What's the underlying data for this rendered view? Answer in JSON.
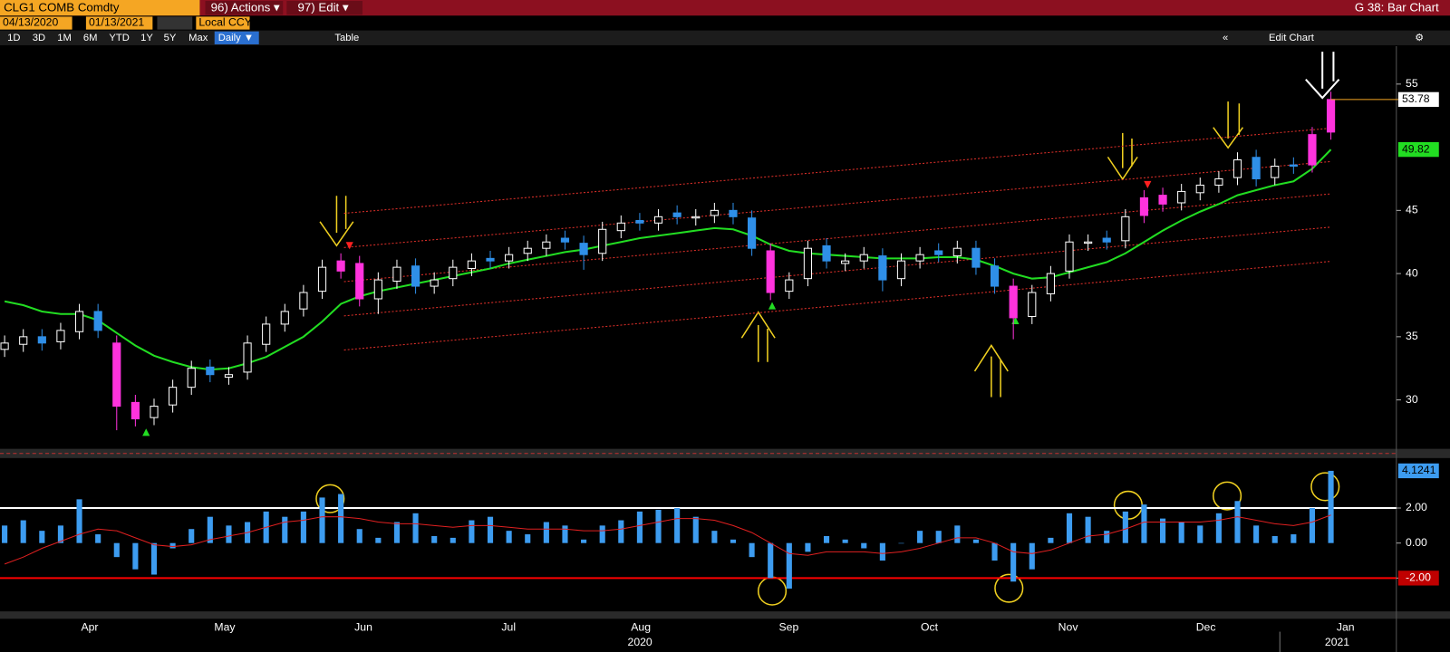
{
  "ui": {
    "security": "CLG1 COMB Comdty",
    "actions": "96) Actions ▾",
    "edit": "97) Edit ▾",
    "function": "G 38: Bar Chart",
    "start_date": "04/13/2020",
    "end_date": "01/13/2021",
    "currency": "Local CCY",
    "periods": [
      "1D",
      "3D",
      "1M",
      "6M",
      "YTD",
      "1Y",
      "5Y",
      "Max"
    ],
    "frequency": "Daily ▼",
    "table": "Table",
    "edit_chart": "Edit Chart"
  },
  "chart_data": [
    {
      "type": "candlestick",
      "open": [
        34.0,
        34.4,
        35.0,
        34.6,
        35.4,
        37.0,
        34.5,
        29.8,
        28.6,
        29.6,
        31.0,
        32.6,
        31.8,
        32.2,
        34.4,
        36.0,
        37.2,
        38.6,
        40.2,
        40.8,
        38.0,
        39.4,
        40.6,
        39.0,
        39.6,
        40.4,
        41.2,
        41.0,
        41.6,
        42.0,
        42.8,
        42.4,
        41.6,
        43.4,
        44.2,
        44.0,
        44.8,
        44.4,
        44.6,
        45.0,
        44.4,
        41.8,
        38.6,
        39.6,
        42.2,
        40.8,
        41.0,
        41.4,
        39.6,
        41.0,
        41.8,
        41.4,
        42.0,
        40.6,
        39.0,
        36.6,
        38.4,
        40.2,
        42.4,
        42.8,
        42.6,
        44.6,
        46.2,
        45.6,
        46.4,
        47.0,
        47.6,
        49.2,
        47.6,
        48.6,
        48.6,
        51.2
      ],
      "high": [
        35.1,
        35.6,
        35.6,
        36.1,
        37.6,
        37.6,
        35.1,
        30.4,
        30.1,
        31.6,
        33.1,
        33.2,
        32.6,
        35.1,
        36.6,
        37.6,
        39.1,
        41.1,
        41.6,
        41.4,
        40.1,
        41.1,
        41.2,
        40.1,
        41.1,
        41.6,
        41.8,
        42.1,
        42.6,
        43.1,
        43.4,
        43.0,
        44.1,
        44.6,
        44.8,
        45.1,
        45.4,
        45.1,
        45.6,
        45.6,
        45.0,
        42.4,
        40.1,
        42.6,
        42.8,
        41.6,
        42.1,
        42.0,
        41.6,
        42.1,
        42.4,
        42.6,
        42.6,
        41.2,
        39.6,
        39.1,
        40.6,
        43.1,
        43.1,
        43.4,
        45.1,
        46.6,
        46.8,
        47.1,
        47.6,
        48.1,
        49.6,
        49.8,
        49.1,
        49.2,
        51.6,
        54.4
      ],
      "low": [
        33.4,
        33.8,
        33.9,
        34.0,
        34.8,
        34.9,
        27.6,
        27.9,
        28.0,
        29.0,
        30.4,
        31.4,
        31.2,
        31.6,
        33.8,
        35.4,
        36.6,
        38.0,
        39.6,
        37.4,
        36.8,
        38.8,
        38.4,
        38.4,
        39.0,
        39.8,
        40.4,
        40.4,
        41.0,
        41.4,
        41.9,
        40.3,
        41.0,
        42.8,
        43.4,
        43.4,
        43.9,
        43.8,
        44.0,
        43.9,
        41.4,
        37.9,
        38.0,
        39.0,
        40.4,
        40.2,
        40.4,
        38.6,
        39.0,
        40.4,
        40.9,
        40.8,
        39.9,
        38.4,
        34.8,
        36.0,
        37.8,
        39.6,
        41.8,
        41.9,
        42.0,
        44.0,
        44.9,
        45.0,
        45.8,
        46.4,
        47.0,
        46.9,
        47.0,
        47.9,
        48.0,
        50.6
      ],
      "close": [
        34.5,
        35,
        34.5,
        35.5,
        37,
        35.5,
        29.5,
        28.5,
        29.5,
        31,
        32.5,
        32,
        32,
        34.5,
        36,
        37,
        38.5,
        40.5,
        41,
        38,
        39.5,
        40.5,
        39,
        39.5,
        40.5,
        41,
        41,
        41.5,
        42,
        42.5,
        42.5,
        41.5,
        43.5,
        44,
        44,
        44.5,
        44.5,
        44.5,
        45,
        44.5,
        42,
        38.5,
        39.5,
        42,
        41,
        41,
        41.5,
        39.5,
        41,
        41.5,
        41.5,
        42,
        40.5,
        39,
        36.5,
        38.5,
        40,
        42.5,
        42.5,
        42.5,
        44.5,
        46,
        45.5,
        46.5,
        47,
        47.5,
        49,
        47.5,
        48.5,
        48.5,
        51,
        53.78
      ],
      "up_color": "#ffffff",
      "down_color": "#2f8fe8",
      "highlight_color": "#ff33dd",
      "highlighted": [
        6,
        7,
        18,
        19,
        41,
        54,
        61,
        62,
        70,
        71
      ],
      "series": [
        {
          "color": "#22dd22",
          "values": [
            37.8,
            37.5,
            37.0,
            36.8,
            36.8,
            36.3,
            35.3,
            34.3,
            33.5,
            33.0,
            32.6,
            32.4,
            32.5,
            32.9,
            33.4,
            34.2,
            35.0,
            36.2,
            37.6,
            38.2,
            38.6,
            38.9,
            39.2,
            39.5,
            39.8,
            40.1,
            40.4,
            40.8,
            41.1,
            41.4,
            41.7,
            41.9,
            42.2,
            42.5,
            42.8,
            43.0,
            43.2,
            43.4,
            43.6,
            43.5,
            43.0,
            42.3,
            41.8,
            41.6,
            41.5,
            41.4,
            41.3,
            41.2,
            41.2,
            41.2,
            41.3,
            41.3,
            41.1,
            40.6,
            40.0,
            39.6,
            39.7,
            40.1,
            40.5,
            40.9,
            41.6,
            42.5,
            43.4,
            44.2,
            44.9,
            45.5,
            46.2,
            46.6,
            47.0,
            47.3,
            48.3,
            49.82
          ]
        }
      ],
      "channel_lines": [
        {
          "start": 44.77,
          "end": 51.5
        },
        {
          "start": 42.06,
          "end": 48.86
        },
        {
          "start": 39.36,
          "end": 46.3
        },
        {
          "start": 36.65,
          "end": 43.67
        },
        {
          "start": 33.95,
          "end": 40.96
        }
      ],
      "channel_color": "#e0302a",
      "ylim": [
        26.2,
        58
      ],
      "yticks": [
        30,
        35,
        40,
        45,
        55
      ],
      "months": [
        "Apr",
        "May",
        "Jun",
        "Jul",
        "Aug",
        "Sep",
        "Oct",
        "Nov",
        "Dec",
        "Jan"
      ],
      "years": [
        "2020",
        "2021"
      ]
    },
    {
      "type": "bar",
      "series": [
        {
          "color": "#3d9cf0",
          "values": [
            1.0,
            1.3,
            0.7,
            1.0,
            2.5,
            0.5,
            -0.8,
            -1.5,
            -1.8,
            -0.3,
            0.8,
            1.5,
            1.0,
            1.2,
            1.8,
            1.5,
            1.8,
            2.6,
            2.8,
            0.8,
            0.3,
            1.2,
            1.7,
            0.4,
            0.3,
            1.3,
            1.5,
            0.7,
            0.5,
            1.2,
            1.0,
            0.2,
            1.0,
            1.3,
            1.8,
            1.9,
            2.0,
            1.5,
            0.7,
            0.2,
            -0.8,
            -2.0,
            -2.6,
            -0.5,
            0.4,
            0.2,
            -0.3,
            -1.0,
            0.0,
            0.7,
            0.7,
            1.0,
            0.2,
            -1.0,
            -2.2,
            -1.5,
            0.3,
            1.7,
            1.5,
            0.7,
            1.8,
            2.2,
            1.4,
            1.2,
            1.0,
            1.7,
            2.4,
            1.0,
            0.4,
            0.5,
            2.0,
            4.1241
          ]
        },
        {
          "type": "line",
          "color": "#e02020",
          "values": [
            -1.2,
            -0.8,
            -0.3,
            0.1,
            0.5,
            0.8,
            0.7,
            0.3,
            -0.1,
            -0.2,
            -0.1,
            0.2,
            0.4,
            0.6,
            0.9,
            1.2,
            1.3,
            1.5,
            1.5,
            1.4,
            1.2,
            1.1,
            1.1,
            1.0,
            0.9,
            1.0,
            1.0,
            0.9,
            0.8,
            0.8,
            0.8,
            0.7,
            0.7,
            0.8,
            1.0,
            1.2,
            1.4,
            1.4,
            1.3,
            1.0,
            0.6,
            0.0,
            -0.6,
            -0.7,
            -0.5,
            -0.5,
            -0.5,
            -0.6,
            -0.5,
            -0.3,
            0.0,
            0.3,
            0.3,
            0.0,
            -0.5,
            -0.6,
            -0.4,
            0.0,
            0.4,
            0.5,
            0.8,
            1.2,
            1.2,
            1.2,
            1.2,
            1.3,
            1.5,
            1.3,
            1.1,
            1.0,
            1.2,
            1.6
          ]
        }
      ],
      "reference_lines": [
        {
          "value": 2,
          "color": "#ffffff"
        },
        {
          "value": -2,
          "color": "#ff0000"
        }
      ],
      "ylim": [
        -3.9,
        4.8
      ],
      "yticks": [
        {
          "value": -2,
          "label": "-2.00"
        },
        {
          "value": 0,
          "label": "0.00"
        },
        {
          "value": 2,
          "label": "2.00"
        }
      ]
    }
  ]
}
